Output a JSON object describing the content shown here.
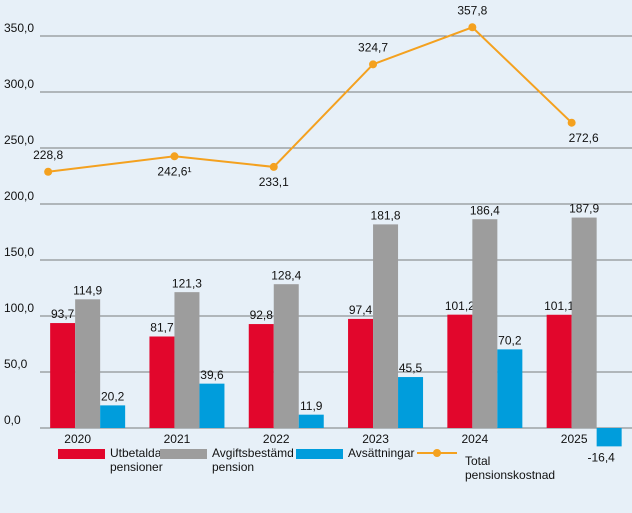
{
  "chart_data": {
    "type": "bar-line",
    "categories": [
      "2020",
      "2021",
      "2022",
      "2023",
      "2024",
      "2025"
    ],
    "series": [
      {
        "name": "Utbetalda pensioner",
        "color": "#e2062c",
        "type": "bar",
        "values": [
          93.7,
          81.7,
          92.8,
          97.4,
          101.2,
          101.1
        ],
        "value_labels": [
          "93,7",
          "81,7",
          "92,8",
          "97,4",
          "101,2",
          "101,1"
        ]
      },
      {
        "name": "Avgiftsbestämd pension",
        "color": "#9d9d9d",
        "type": "bar",
        "values": [
          114.9,
          121.3,
          128.4,
          181.8,
          186.4,
          187.9
        ],
        "value_labels": [
          "114,9",
          "121,3",
          "128,4",
          "181,8",
          "186,4",
          "187,9"
        ]
      },
      {
        "name": "Avsättningar",
        "color": "#009ddc",
        "type": "bar",
        "values": [
          20.2,
          39.6,
          11.9,
          45.5,
          70.2,
          -16.4
        ],
        "value_labels": [
          "20,2",
          "39,6",
          "11,9",
          "45,5",
          "70,2",
          "-16,4"
        ]
      },
      {
        "name": "Total pensionskostnad",
        "color": "#f4a11f",
        "type": "line",
        "values": [
          228.8,
          242.6,
          233.1,
          324.7,
          357.8,
          272.6
        ],
        "value_labels": [
          "228,8",
          "242,6¹",
          "233,1",
          "324,7",
          "357,8",
          "272,6"
        ]
      }
    ],
    "ylim": [
      -25,
      370
    ],
    "yticks": [
      {
        "value": 0,
        "label": "0,0"
      },
      {
        "value": 50,
        "label": "50,0"
      },
      {
        "value": 100,
        "label": "100,0"
      },
      {
        "value": 150,
        "label": "150,0"
      },
      {
        "value": 200,
        "label": "200,0"
      },
      {
        "value": 250,
        "label": "250,0"
      },
      {
        "value": 300,
        "label": "300,0"
      },
      {
        "value": 350,
        "label": "350,0"
      }
    ],
    "grid": true
  }
}
